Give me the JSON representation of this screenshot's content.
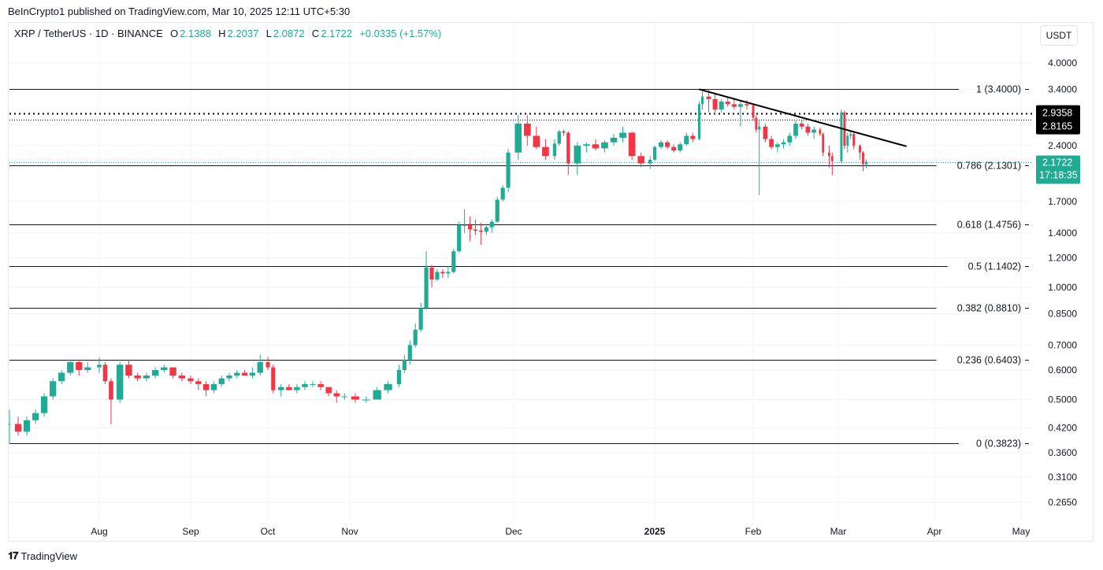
{
  "published": "BeInCrypto1 published on TradingView.com, Mar 10, 2025 12:11 UTC+5:30",
  "legend": {
    "symbol": "XRP / TetherUS · 1D · BINANCE",
    "o_label": "O",
    "o": "2.1388",
    "h_label": "H",
    "h": "2.2037",
    "l_label": "L",
    "l": "2.0872",
    "c_label": "C",
    "c": "2.1722",
    "change": "+0.0335 (+1.57%)"
  },
  "currency": "USDT",
  "footer": {
    "brand": "TradingView"
  },
  "colors": {
    "up": "#22ab94",
    "down": "#f23645",
    "line": "#000000",
    "grid": "#f0f3fa"
  },
  "chart_data": {
    "type": "candlestick",
    "interval": "1D",
    "y_scale": "log",
    "ylim": [
      0.245,
      4.3
    ],
    "grid": true,
    "y_ticks": [
      "4.0000",
      "3.4000",
      "2.4000",
      "1.7000",
      "1.4000",
      "1.2000",
      "1.0000",
      "0.8500",
      "0.7000",
      "0.6000",
      "0.5000",
      "0.4200",
      "0.3600",
      "0.3100",
      "0.2650"
    ],
    "x_ticks": [
      {
        "label": "Aug",
        "date": "2024-08-01",
        "bold": false
      },
      {
        "label": "Sep",
        "date": "2024-09-01",
        "bold": false
      },
      {
        "label": "Oct",
        "date": "2024-10-01",
        "bold": false
      },
      {
        "label": "Nov",
        "date": "2024-11-01",
        "bold": false
      },
      {
        "label": "Dec",
        "date": "2024-12-01",
        "bold": false
      },
      {
        "label": "2025",
        "date": "2025-01-01",
        "bold": true
      },
      {
        "label": "Feb",
        "date": "2025-02-01",
        "bold": false
      },
      {
        "label": "Mar",
        "date": "2025-03-01",
        "bold": false
      },
      {
        "label": "Apr",
        "date": "2025-04-01",
        "bold": false
      },
      {
        "label": "May",
        "date": "2025-05-01",
        "bold": false
      }
    ],
    "fib_levels": [
      {
        "ratio": "1",
        "price": 3.4,
        "label": "1 (3.4000)"
      },
      {
        "ratio": "0.786",
        "price": 2.1301,
        "label": "0.786 (2.1301)"
      },
      {
        "ratio": "0.618",
        "price": 1.4756,
        "label": "0.618 (1.4756)"
      },
      {
        "ratio": "0.5",
        "price": 1.1402,
        "label": "0.5 (1.1402)"
      },
      {
        "ratio": "0.382",
        "price": 0.881,
        "label": "0.382 (0.8810)"
      },
      {
        "ratio": "0.236",
        "price": 0.6403,
        "label": "0.236 (0.6403)"
      },
      {
        "ratio": "0",
        "price": 0.3823,
        "label": "0 (0.3823)"
      }
    ],
    "horizontal_lines": [
      {
        "price": 2.9358,
        "label": "2.9358",
        "style": "dotted-bold"
      },
      {
        "price": 2.8165,
        "label": "2.8165",
        "style": "dotted-thin"
      }
    ],
    "last_price": {
      "price": 2.1722,
      "label": "2.1722",
      "countdown": "17:18:35"
    },
    "trendline": [
      {
        "date": "2025-01-15",
        "price": 3.4
      },
      {
        "date": "2025-03-23",
        "price": 2.39
      }
    ],
    "candles": [
      [
        "2024-07-01",
        0.43,
        0.47,
        0.38,
        0.43
      ],
      [
        "2024-07-04",
        0.43,
        0.45,
        0.4,
        0.41
      ],
      [
        "2024-07-07",
        0.41,
        0.45,
        0.4,
        0.44
      ],
      [
        "2024-07-10",
        0.44,
        0.47,
        0.43,
        0.46
      ],
      [
        "2024-07-13",
        0.46,
        0.52,
        0.45,
        0.51
      ],
      [
        "2024-07-16",
        0.51,
        0.57,
        0.5,
        0.56
      ],
      [
        "2024-07-19",
        0.56,
        0.6,
        0.55,
        0.59
      ],
      [
        "2024-07-22",
        0.59,
        0.64,
        0.58,
        0.63
      ],
      [
        "2024-07-25",
        0.63,
        0.64,
        0.58,
        0.6
      ],
      [
        "2024-07-28",
        0.6,
        0.63,
        0.59,
        0.61
      ],
      [
        "2024-08-01",
        0.61,
        0.65,
        0.59,
        0.62
      ],
      [
        "2024-08-03",
        0.62,
        0.63,
        0.55,
        0.56
      ],
      [
        "2024-08-05",
        0.56,
        0.57,
        0.43,
        0.5
      ],
      [
        "2024-08-08",
        0.5,
        0.63,
        0.49,
        0.62
      ],
      [
        "2024-08-11",
        0.62,
        0.64,
        0.57,
        0.58
      ],
      [
        "2024-08-14",
        0.58,
        0.59,
        0.56,
        0.57
      ],
      [
        "2024-08-17",
        0.57,
        0.59,
        0.56,
        0.58
      ],
      [
        "2024-08-20",
        0.58,
        0.61,
        0.57,
        0.6
      ],
      [
        "2024-08-23",
        0.6,
        0.62,
        0.59,
        0.61
      ],
      [
        "2024-08-26",
        0.61,
        0.61,
        0.57,
        0.58
      ],
      [
        "2024-08-29",
        0.58,
        0.59,
        0.56,
        0.57
      ],
      [
        "2024-09-01",
        0.57,
        0.58,
        0.55,
        0.56
      ],
      [
        "2024-09-04",
        0.56,
        0.57,
        0.53,
        0.55
      ],
      [
        "2024-09-07",
        0.55,
        0.56,
        0.51,
        0.53
      ],
      [
        "2024-09-10",
        0.53,
        0.56,
        0.52,
        0.55
      ],
      [
        "2024-09-13",
        0.55,
        0.58,
        0.54,
        0.57
      ],
      [
        "2024-09-16",
        0.57,
        0.59,
        0.56,
        0.58
      ],
      [
        "2024-09-19",
        0.58,
        0.6,
        0.57,
        0.59
      ],
      [
        "2024-09-22",
        0.59,
        0.6,
        0.58,
        0.58
      ],
      [
        "2024-09-25",
        0.58,
        0.61,
        0.57,
        0.59
      ],
      [
        "2024-09-28",
        0.59,
        0.66,
        0.58,
        0.63
      ],
      [
        "2024-10-01",
        0.63,
        0.65,
        0.6,
        0.61
      ],
      [
        "2024-10-03",
        0.61,
        0.62,
        0.52,
        0.53
      ],
      [
        "2024-10-06",
        0.53,
        0.55,
        0.51,
        0.54
      ],
      [
        "2024-10-09",
        0.54,
        0.55,
        0.53,
        0.53
      ],
      [
        "2024-10-12",
        0.53,
        0.55,
        0.52,
        0.54
      ],
      [
        "2024-10-15",
        0.54,
        0.56,
        0.53,
        0.55
      ],
      [
        "2024-10-18",
        0.55,
        0.56,
        0.54,
        0.55
      ],
      [
        "2024-10-21",
        0.55,
        0.56,
        0.53,
        0.54
      ],
      [
        "2024-10-24",
        0.54,
        0.54,
        0.51,
        0.52
      ],
      [
        "2024-10-27",
        0.52,
        0.53,
        0.49,
        0.51
      ],
      [
        "2024-10-30",
        0.51,
        0.52,
        0.5,
        0.51
      ],
      [
        "2024-11-02",
        0.51,
        0.52,
        0.49,
        0.5
      ],
      [
        "2024-11-04",
        0.5,
        0.51,
        0.49,
        0.5
      ],
      [
        "2024-11-06",
        0.5,
        0.54,
        0.5,
        0.53
      ],
      [
        "2024-11-08",
        0.53,
        0.56,
        0.52,
        0.55
      ],
      [
        "2024-11-10",
        0.55,
        0.62,
        0.54,
        0.6
      ],
      [
        "2024-11-11",
        0.6,
        0.66,
        0.59,
        0.64
      ],
      [
        "2024-11-12",
        0.64,
        0.72,
        0.62,
        0.7
      ],
      [
        "2024-11-13",
        0.7,
        0.8,
        0.69,
        0.77
      ],
      [
        "2024-11-14",
        0.77,
        0.91,
        0.76,
        0.88
      ],
      [
        "2024-11-15",
        0.88,
        1.25,
        0.87,
        1.13
      ],
      [
        "2024-11-16",
        1.13,
        1.15,
        1.0,
        1.05
      ],
      [
        "2024-11-17",
        1.05,
        1.12,
        1.04,
        1.1
      ],
      [
        "2024-11-18",
        1.1,
        1.12,
        1.06,
        1.09
      ],
      [
        "2024-11-19",
        1.09,
        1.14,
        1.06,
        1.1
      ],
      [
        "2024-11-20",
        1.1,
        1.27,
        1.09,
        1.25
      ],
      [
        "2024-11-21",
        1.25,
        1.5,
        1.24,
        1.47
      ],
      [
        "2024-11-22",
        1.47,
        1.62,
        1.4,
        1.47
      ],
      [
        "2024-11-23",
        1.47,
        1.55,
        1.33,
        1.43
      ],
      [
        "2024-11-24",
        1.43,
        1.52,
        1.38,
        1.42
      ],
      [
        "2024-11-25",
        1.42,
        1.49,
        1.3,
        1.41
      ],
      [
        "2024-11-26",
        1.41,
        1.48,
        1.38,
        1.45
      ],
      [
        "2024-11-27",
        1.45,
        1.52,
        1.4,
        1.5
      ],
      [
        "2024-11-28",
        1.5,
        1.75,
        1.49,
        1.72
      ],
      [
        "2024-11-29",
        1.72,
        1.88,
        1.7,
        1.85
      ],
      [
        "2024-11-30",
        1.85,
        2.35,
        1.8,
        2.3
      ],
      [
        "2024-12-02",
        2.3,
        2.9,
        2.2,
        2.75
      ],
      [
        "2024-12-04",
        2.75,
        2.9,
        2.4,
        2.55
      ],
      [
        "2024-12-06",
        2.55,
        2.7,
        2.35,
        2.38
      ],
      [
        "2024-12-08",
        2.38,
        2.5,
        2.2,
        2.25
      ],
      [
        "2024-12-10",
        2.25,
        2.5,
        2.2,
        2.43
      ],
      [
        "2024-12-11",
        2.43,
        2.65,
        2.4,
        2.62
      ],
      [
        "2024-12-12",
        2.62,
        2.65,
        2.55,
        2.6
      ],
      [
        "2024-12-13",
        2.6,
        2.62,
        2.0,
        2.15
      ],
      [
        "2024-12-15",
        2.15,
        2.45,
        2.0,
        2.4
      ],
      [
        "2024-12-17",
        2.4,
        2.45,
        2.3,
        2.42
      ],
      [
        "2024-12-19",
        2.42,
        2.5,
        2.33,
        2.36
      ],
      [
        "2024-12-21",
        2.36,
        2.48,
        2.3,
        2.45
      ],
      [
        "2024-12-23",
        2.45,
        2.58,
        2.4,
        2.52
      ],
      [
        "2024-12-25",
        2.52,
        2.7,
        2.45,
        2.6
      ],
      [
        "2024-12-27",
        2.6,
        2.62,
        2.2,
        2.25
      ],
      [
        "2024-12-29",
        2.25,
        2.3,
        2.1,
        2.15
      ],
      [
        "2024-12-31",
        2.15,
        2.25,
        2.08,
        2.2
      ],
      [
        "2025-01-01",
        2.2,
        2.4,
        2.18,
        2.38
      ],
      [
        "2025-01-03",
        2.38,
        2.48,
        2.35,
        2.45
      ],
      [
        "2025-01-05",
        2.45,
        2.48,
        2.35,
        2.38
      ],
      [
        "2025-01-07",
        2.38,
        2.42,
        2.3,
        2.33
      ],
      [
        "2025-01-09",
        2.33,
        2.45,
        2.3,
        2.42
      ],
      [
        "2025-01-11",
        2.42,
        2.6,
        2.4,
        2.55
      ],
      [
        "2025-01-13",
        2.55,
        2.6,
        2.45,
        2.5
      ],
      [
        "2025-01-15",
        2.5,
        3.15,
        2.48,
        3.1
      ],
      [
        "2025-01-16",
        3.1,
        3.35,
        3.0,
        3.25
      ],
      [
        "2025-01-18",
        3.25,
        3.4,
        2.95,
        3.2
      ],
      [
        "2025-01-20",
        3.2,
        3.3,
        2.9,
        3.0
      ],
      [
        "2025-01-22",
        3.0,
        3.2,
        2.95,
        3.15
      ],
      [
        "2025-01-24",
        3.15,
        3.25,
        3.05,
        3.1
      ],
      [
        "2025-01-26",
        3.1,
        3.2,
        3.0,
        3.05
      ],
      [
        "2025-01-28",
        3.05,
        3.15,
        2.7,
        3.1
      ],
      [
        "2025-01-30",
        3.1,
        3.18,
        3.0,
        3.08
      ],
      [
        "2025-02-01",
        3.08,
        3.1,
        2.8,
        2.85
      ],
      [
        "2025-02-02",
        2.85,
        2.9,
        2.6,
        2.65
      ],
      [
        "2025-02-03",
        2.65,
        2.8,
        1.77,
        2.7
      ],
      [
        "2025-02-05",
        2.7,
        2.75,
        2.45,
        2.5
      ],
      [
        "2025-02-07",
        2.5,
        2.55,
        2.35,
        2.38
      ],
      [
        "2025-02-09",
        2.38,
        2.45,
        2.3,
        2.42
      ],
      [
        "2025-02-11",
        2.42,
        2.5,
        2.36,
        2.45
      ],
      [
        "2025-02-13",
        2.45,
        2.6,
        2.4,
        2.55
      ],
      [
        "2025-02-15",
        2.55,
        2.8,
        2.5,
        2.75
      ],
      [
        "2025-02-17",
        2.75,
        2.82,
        2.65,
        2.7
      ],
      [
        "2025-02-19",
        2.7,
        2.75,
        2.55,
        2.6
      ],
      [
        "2025-02-21",
        2.6,
        2.7,
        2.5,
        2.65
      ],
      [
        "2025-02-23",
        2.65,
        2.68,
        2.55,
        2.58
      ],
      [
        "2025-02-24",
        2.58,
        2.6,
        2.25,
        2.3
      ],
      [
        "2025-02-26",
        2.3,
        2.4,
        2.1,
        2.25
      ],
      [
        "2025-02-27",
        2.25,
        2.3,
        2.0,
        2.18
      ],
      [
        "2025-03-02",
        2.18,
        3.0,
        2.15,
        2.95
      ],
      [
        "2025-03-03",
        2.95,
        2.98,
        2.35,
        2.4
      ],
      [
        "2025-03-04",
        2.4,
        2.6,
        2.3,
        2.55
      ],
      [
        "2025-03-05",
        2.55,
        2.62,
        2.5,
        2.58
      ],
      [
        "2025-03-06",
        2.58,
        2.62,
        2.35,
        2.4
      ],
      [
        "2025-03-08",
        2.4,
        2.42,
        2.2,
        2.3
      ],
      [
        "2025-03-09",
        2.3,
        2.32,
        2.05,
        2.14
      ],
      [
        "2025-03-10",
        2.1388,
        2.2037,
        2.0872,
        2.1722
      ]
    ]
  }
}
